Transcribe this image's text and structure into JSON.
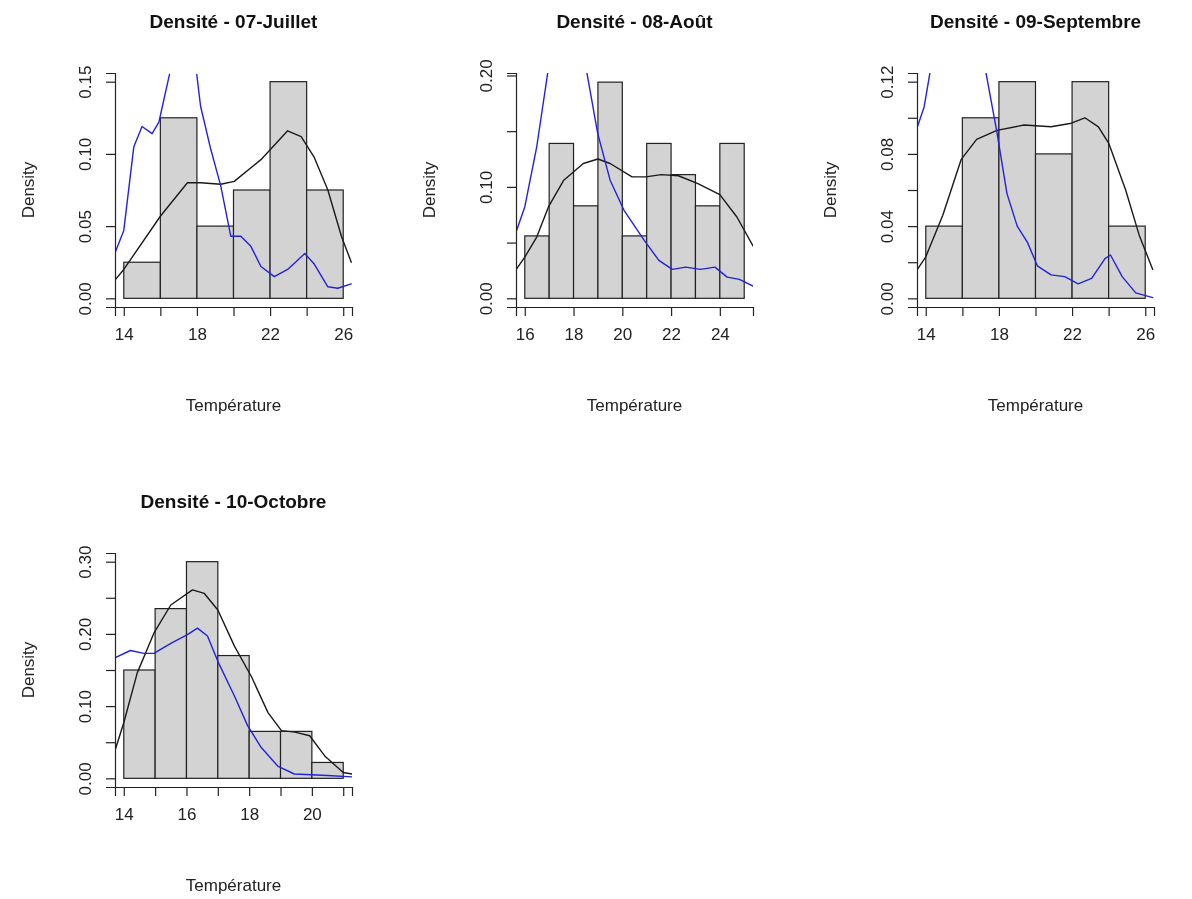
{
  "chart_data": [
    {
      "type": "histogram",
      "title": "Densité - 07-Juillet",
      "xlabel": "Température",
      "ylabel": "Density",
      "color": "#d3d3d3",
      "bins": [
        14,
        16,
        18,
        20,
        22,
        24,
        26
      ],
      "values": [
        0.025,
        0.125,
        0.05,
        0.075,
        0.15,
        0.075
      ],
      "xlim": [
        13.52,
        26.48
      ],
      "ylim": [
        -0.006,
        0.156
      ],
      "xticks": [
        14,
        {
          "value": 16,
          "label": null
        },
        18,
        {
          "value": 20,
          "label": null
        },
        22,
        {
          "value": 24,
          "label": null
        },
        26
      ],
      "yticks": [
        {
          "value": 0,
          "label": "0.00"
        },
        {
          "value": 0.05,
          "label": "0.05"
        },
        {
          "value": 0.1,
          "label": "0.10"
        },
        {
          "value": 0.15,
          "label": "0.15"
        }
      ],
      "series": [
        {
          "type": "line",
          "color": "#1a1a1a",
          "x": [
            13.54,
            14,
            16.01,
            17.48,
            18.2,
            19.3,
            20.04,
            21.5,
            22.96,
            23.7,
            24.4,
            25.16,
            25.9,
            26.44
          ],
          "values": [
            0.013,
            0.02,
            0.057,
            0.08,
            0.08,
            0.079,
            0.081,
            0.096,
            0.116,
            0.112,
            0.098,
            0.075,
            0.043,
            0.025
          ]
        },
        {
          "type": "line",
          "color": "#2222dd",
          "x": [
            13.54,
            14,
            14.55,
            15.0,
            15.55,
            15.92,
            16.2,
            16.5,
            17.2,
            17.99,
            18.2,
            18.76,
            19.3,
            19.85,
            20.4,
            20.95,
            21.5,
            22.23,
            22.96,
            23.9,
            24.4,
            25.16,
            25.7,
            26.44
          ],
          "values": [
            0.032,
            0.047,
            0.105,
            0.119,
            0.114,
            0.122,
            0.138,
            0.155,
            null,
            0.155,
            0.133,
            0.103,
            0.078,
            0.043,
            0.043,
            0.036,
            0.022,
            0.015,
            0.02,
            0.031,
            0.024,
            0.008,
            0.007,
            0.01
          ]
        }
      ]
    },
    {
      "type": "histogram",
      "title": "Densité - 08-Août",
      "xlabel": "Température",
      "ylabel": "Density",
      "color": "#d3d3d3",
      "bins": [
        16,
        17,
        18,
        19,
        20,
        21,
        22,
        23,
        24,
        25
      ],
      "values": [
        0.056,
        0.139,
        0.083,
        0.194,
        0.056,
        0.139,
        0.111,
        0.083,
        0.139
      ],
      "xlim": [
        15.64,
        25.36
      ],
      "ylim": [
        -0.0078,
        0.2022
      ],
      "xticks": [
        16,
        18,
        20,
        22,
        24
      ],
      "yticks": [
        {
          "value": 0,
          "label": "0.00"
        },
        {
          "value": 0.05,
          "label": null
        },
        {
          "value": 0.1,
          "label": "0.10"
        },
        {
          "value": 0.15,
          "label": null
        },
        {
          "value": 0.2,
          "label": "0.20"
        }
      ],
      "series": [
        {
          "type": "line",
          "color": "#1a1a1a",
          "x": [
            15.65,
            16,
            16.49,
            16.97,
            17.6,
            18.4,
            19.0,
            19.5,
            20.4,
            20.96,
            21.6,
            22.3,
            23.1,
            24,
            24.7,
            25.36
          ],
          "values": [
            0.026,
            0.037,
            0.055,
            0.082,
            0.106,
            0.121,
            0.125,
            0.121,
            0.109,
            0.109,
            0.111,
            0.11,
            0.103,
            0.093,
            0.073,
            0.047
          ]
        },
        {
          "type": "line",
          "color": "#2222dd",
          "x": [
            15.65,
            16,
            16.49,
            16.94,
            17.7,
            18.55,
            18.99,
            19.5,
            20.07,
            20.9,
            21.5,
            22.05,
            22.6,
            23.2,
            23.8,
            24.3,
            24.8,
            25.36
          ],
          "values": [
            0.06,
            0.082,
            0.136,
            0.202,
            null,
            0.202,
            0.148,
            0.106,
            0.079,
            0.052,
            0.034,
            0.026,
            0.028,
            0.026,
            0.028,
            0.019,
            0.017,
            0.011
          ]
        }
      ]
    },
    {
      "type": "histogram",
      "title": "Densité - 09-Septembre",
      "xlabel": "Température",
      "ylabel": "Density",
      "color": "#d3d3d3",
      "bins": [
        14,
        16,
        18,
        20,
        22,
        24,
        26
      ],
      "values": [
        0.04,
        0.1,
        0.12,
        0.08,
        0.12,
        0.04
      ],
      "xlim": [
        13.52,
        26.48
      ],
      "ylim": [
        -0.0048,
        0.1248
      ],
      "xticks": [
        14,
        {
          "value": 16,
          "label": null
        },
        18,
        {
          "value": 20,
          "label": null
        },
        22,
        {
          "value": 24,
          "label": null
        },
        26
      ],
      "yticks": [
        {
          "value": 0,
          "label": "0.00"
        },
        {
          "value": 0.02,
          "label": null
        },
        {
          "value": 0.04,
          "label": "0.04"
        },
        {
          "value": 0.06,
          "label": null
        },
        {
          "value": 0.08,
          "label": "0.08"
        },
        {
          "value": 0.1,
          "label": null
        },
        {
          "value": 0.12,
          "label": "0.12"
        }
      ],
      "series": [
        {
          "type": "line",
          "color": "#1a1a1a",
          "x": [
            13.54,
            14,
            14.93,
            15.94,
            16.78,
            17.89,
            19.37,
            20.85,
            21.96,
            22.7,
            23.44,
            24.0,
            24.93,
            25.67,
            26.41
          ],
          "values": [
            0.016,
            0.023,
            0.046,
            0.077,
            0.088,
            0.093,
            0.096,
            0.095,
            0.097,
            0.1,
            0.095,
            0.086,
            0.06,
            0.035,
            0.016
          ]
        },
        {
          "type": "line",
          "color": "#2222dd",
          "x": [
            13.54,
            13.91,
            14.22,
            15.5,
            17.3,
            17.89,
            18.44,
            19.0,
            19.56,
            20.1,
            20.85,
            21.6,
            22.33,
            23.07,
            23.8,
            24.1,
            24.74,
            25.48,
            26.41
          ],
          "values": [
            0.095,
            0.106,
            0.1245,
            null,
            0.1245,
            0.092,
            0.058,
            0.04,
            0.031,
            0.018,
            0.013,
            0.012,
            0.008,
            0.011,
            0.022,
            0.024,
            0.012,
            0.003,
            0.0004
          ]
        }
      ]
    },
    {
      "type": "histogram",
      "title": "Densité - 10-Octobre",
      "xlabel": "Température",
      "ylabel": "Density",
      "color": "#d3d3d3",
      "bins": [
        14,
        15,
        16,
        17,
        18,
        19,
        20,
        21
      ],
      "values": [
        0.15,
        0.235,
        0.3,
        0.17,
        0.065,
        0.065,
        0.022
      ],
      "xlim": [
        13.72,
        21.28
      ],
      "ylim": [
        -0.012,
        0.312
      ],
      "xticks": [
        14,
        {
          "value": 15,
          "label": null
        },
        16,
        {
          "value": 17,
          "label": null
        },
        18,
        {
          "value": 19,
          "label": null
        },
        20,
        {
          "value": 21,
          "label": null
        }
      ],
      "yticks": [
        {
          "value": 0,
          "label": "0.00"
        },
        {
          "value": 0.05,
          "label": null
        },
        {
          "value": 0.1,
          "label": "0.10"
        },
        {
          "value": 0.15,
          "label": null
        },
        {
          "value": 0.2,
          "label": "0.20"
        },
        {
          "value": 0.25,
          "label": null
        },
        {
          "value": 0.3,
          "label": "0.30"
        }
      ],
      "series": [
        {
          "type": "line",
          "color": "#1a1a1a",
          "x": [
            13.73,
            14,
            14.43,
            14.96,
            15.5,
            16.19,
            16.57,
            17.0,
            17.53,
            18.07,
            18.6,
            19.03,
            19.46,
            19.93,
            20.41,
            21,
            21.28
          ],
          "values": [
            0.04,
            0.077,
            0.146,
            0.201,
            0.24,
            0.261,
            0.256,
            0.233,
            0.183,
            0.141,
            0.091,
            0.066,
            0.064,
            0.059,
            0.031,
            0.008,
            0.006
          ]
        },
        {
          "type": "line",
          "color": "#2222dd",
          "x": [
            13.73,
            14.21,
            14.64,
            14.96,
            15.5,
            16.03,
            16.35,
            16.67,
            17.0,
            17.53,
            17.95,
            18.38,
            18.91,
            19.44,
            19.98,
            20.5,
            21.28
          ],
          "values": [
            0.167,
            0.177,
            0.173,
            0.173,
            0.187,
            0.199,
            0.208,
            0.197,
            0.162,
            0.114,
            0.073,
            0.043,
            0.017,
            0.006,
            0.005,
            0.004,
            0.002
          ]
        }
      ]
    }
  ]
}
